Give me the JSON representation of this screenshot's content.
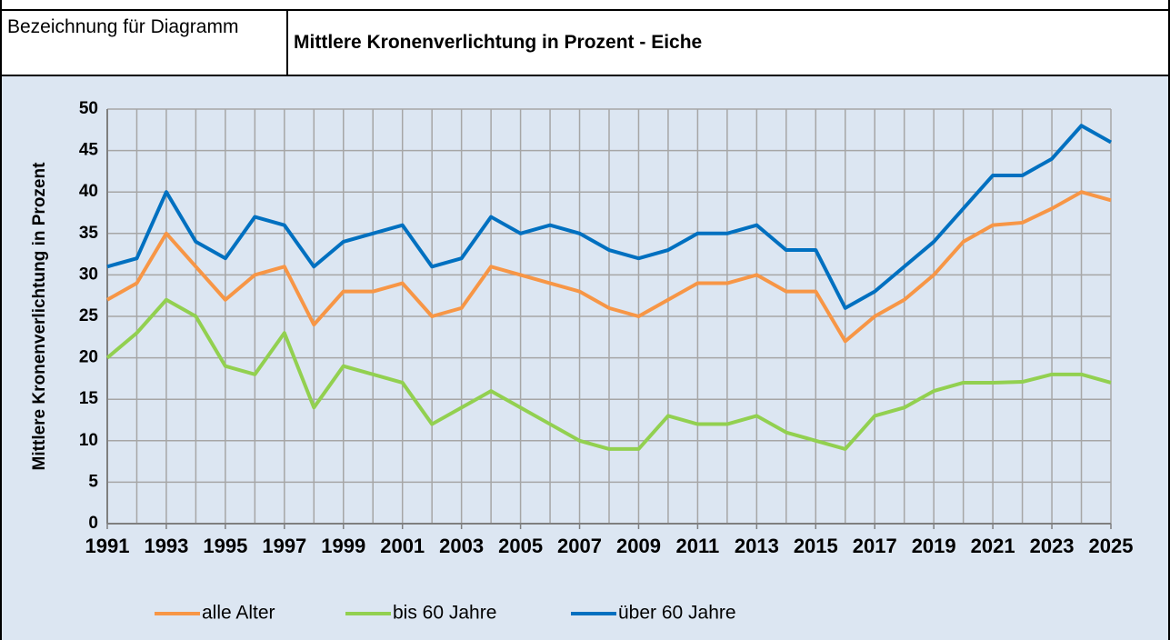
{
  "label": "Bezeichnung für Diagramm",
  "chart_data": {
    "type": "line",
    "title": "Mittlere Kronenverlichtung in Prozent - Eiche",
    "ylabel": "Mittlere Kronenverlichtung in Prozent",
    "x": [
      1991,
      1992,
      1993,
      1994,
      1995,
      1996,
      1997,
      1998,
      1999,
      2000,
      2001,
      2002,
      2003,
      2004,
      2005,
      2006,
      2007,
      2008,
      2009,
      2010,
      2011,
      2012,
      2013,
      2014,
      2015,
      2016,
      2017,
      2018,
      2019,
      2020,
      2021,
      2022,
      2023,
      2024,
      2025
    ],
    "xlim": [
      1991,
      2025
    ],
    "xticks": [
      1991,
      1993,
      1995,
      1997,
      1999,
      2001,
      2003,
      2005,
      2007,
      2009,
      2011,
      2013,
      2015,
      2017,
      2019,
      2021,
      2023,
      2025
    ],
    "ylim": [
      0,
      50
    ],
    "yticks": [
      0,
      5,
      10,
      15,
      20,
      25,
      30,
      35,
      40,
      45,
      50
    ],
    "grid": true,
    "legend": "bottom",
    "series": [
      {
        "name": "alle Alter",
        "color": "#f79646",
        "values": [
          27,
          29,
          35,
          31,
          27,
          30,
          31,
          24,
          28,
          28,
          29,
          25,
          26,
          31,
          30,
          29,
          28,
          26,
          25,
          27,
          29,
          29,
          30,
          28,
          28,
          22,
          25,
          27,
          30,
          34,
          36,
          36.3,
          38,
          40,
          39
        ]
      },
      {
        "name": "bis 60 Jahre",
        "color": "#92d050",
        "values": [
          20,
          23,
          27,
          25,
          19,
          18,
          23,
          14,
          19,
          18,
          17,
          12,
          14,
          16,
          14,
          12,
          10,
          9,
          9,
          13,
          12,
          12,
          13,
          11,
          10,
          9,
          13,
          14,
          16,
          17,
          17,
          17.1,
          18,
          18,
          17
        ]
      },
      {
        "name": "über 60 Jahre",
        "color": "#0070c0",
        "values": [
          31,
          32,
          40,
          34,
          32,
          37,
          36,
          31,
          34,
          35,
          36,
          31,
          32,
          37,
          35,
          36,
          35,
          33,
          32,
          33,
          35,
          35,
          36,
          33,
          33,
          26,
          28,
          31,
          34,
          38,
          42,
          42,
          44,
          48,
          46
        ]
      }
    ]
  }
}
